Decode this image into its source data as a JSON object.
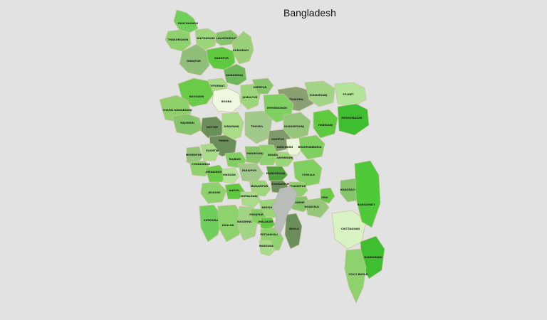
{
  "title": "Bangladesh",
  "colors": {
    "background": "#e2e2e2",
    "border": "#c9c3a0",
    "river": "#b9bdb8"
  },
  "districts": [
    {
      "name": "PANCHAGARH",
      "color": "#6fcf5a"
    },
    {
      "name": "THAKURGAON",
      "color": "#8ed26e"
    },
    {
      "name": "NILPHAMARI",
      "color": "#9bd67a"
    },
    {
      "name": "LALMONIRHAT",
      "color": "#86c56b"
    },
    {
      "name": "DINAJPUR",
      "color": "#8fbf78"
    },
    {
      "name": "RANGPUR",
      "color": "#5fc93f"
    },
    {
      "name": "KURIGRAM",
      "color": "#9bd07a"
    },
    {
      "name": "GAIBANDHA",
      "color": "#6db85a"
    },
    {
      "name": "JOYPURHAT",
      "color": "#a8dc88"
    },
    {
      "name": "NAOGAON",
      "color": "#6acb48"
    },
    {
      "name": "BOGRA",
      "color": "#eef8e0"
    },
    {
      "name": "JAMALPUR",
      "color": "#9bd67a"
    },
    {
      "name": "SHERPUR",
      "color": "#86c56b"
    },
    {
      "name": "NETROKONA",
      "color": "#8a9f72"
    },
    {
      "name": "SUNAMGANJ",
      "color": "#a2d486"
    },
    {
      "name": "SYLHET",
      "color": "#b4e49a"
    },
    {
      "name": "CHAPAI NAWABGANJ",
      "color": "#8fcf6c"
    },
    {
      "name": "RAJSHAHI",
      "color": "#86c56b"
    },
    {
      "name": "NATORE",
      "color": "#6b8f5a"
    },
    {
      "name": "SIRAJGANJ",
      "color": "#a8dc88"
    },
    {
      "name": "TANGAIL",
      "color": "#a2c98c"
    },
    {
      "name": "MYMENSINGH",
      "color": "#7fd060"
    },
    {
      "name": "KISHOREGANJ",
      "color": "#95c679"
    },
    {
      "name": "HABIGANJ",
      "color": "#5fc93f"
    },
    {
      "name": "MOULVIBAZAR",
      "color": "#3fbf2f"
    },
    {
      "name": "GAZIPUR",
      "color": "#7e9a6a"
    },
    {
      "name": "NARSINGDI",
      "color": "#e9f7d8"
    },
    {
      "name": "BRAHMANBARIA",
      "color": "#7fd060"
    },
    {
      "name": "NARAYANGANJ",
      "color": "#9bd67a"
    },
    {
      "name": "DHAKA",
      "color": "#8ed26e"
    },
    {
      "name": "PABNA",
      "color": "#6b8f5a"
    },
    {
      "name": "KUSHTIA",
      "color": "#a8dc88"
    },
    {
      "name": "MEHERPUR",
      "color": "#95c679"
    },
    {
      "name": "CHUADANGA",
      "color": "#8ed26e"
    },
    {
      "name": "JHENAIDAH",
      "color": "#6acb48"
    },
    {
      "name": "RAJBARI",
      "color": "#7fd060"
    },
    {
      "name": "MANIKGANJ",
      "color": "#86c56b"
    },
    {
      "name": "MAGURA",
      "color": "#b4e49a"
    },
    {
      "name": "FARIDPUR",
      "color": "#a2c98c"
    },
    {
      "name": "MUNSHIGANJ",
      "color": "#4fa33a"
    },
    {
      "name": "SHARIATPUR",
      "color": "#6b8f5a"
    },
    {
      "name": "COMILLA",
      "color": "#7fd060"
    },
    {
      "name": "CHANDPUR",
      "color": "#8fcf6c"
    },
    {
      "name": "MADARIPUR",
      "color": "#9bd67a"
    },
    {
      "name": "JESSORE",
      "color": "#8ed26e"
    },
    {
      "name": "NARAIL",
      "color": "#5fc93f"
    },
    {
      "name": "GOPALGANJ",
      "color": "#a8dc88"
    },
    {
      "name": "LAKSHMIPUR",
      "color": "#86c56b"
    },
    {
      "name": "NOAKHALI",
      "color": "#95c679"
    },
    {
      "name": "FENI",
      "color": "#6acb48"
    },
    {
      "name": "SATKHIRA",
      "color": "#6fcf5a"
    },
    {
      "name": "KHULNA",
      "color": "#8ed26e"
    },
    {
      "name": "BAGERHAT",
      "color": "#a2d486"
    },
    {
      "name": "BARISAL",
      "color": "#9bd67a"
    },
    {
      "name": "PIROJPUR",
      "color": "#7fd060"
    },
    {
      "name": "JHALAKATI",
      "color": "#5fc93f"
    },
    {
      "name": "PATUAKHALI",
      "color": "#8ed26e"
    },
    {
      "name": "BARGUNA",
      "color": "#a8dc88"
    },
    {
      "name": "BHOLA",
      "color": "#6b8f5a"
    },
    {
      "name": "CHITTAGONG",
      "color": "#d9f2c4"
    },
    {
      "name": "KHAGRACHHARI",
      "color": "#86c56b"
    },
    {
      "name": "RANGAMATI",
      "color": "#4fc93a"
    },
    {
      "name": "BANDARBAN",
      "color": "#3fbf2f"
    },
    {
      "name": "COX'S BAZAR",
      "color": "#8ed26e"
    }
  ]
}
